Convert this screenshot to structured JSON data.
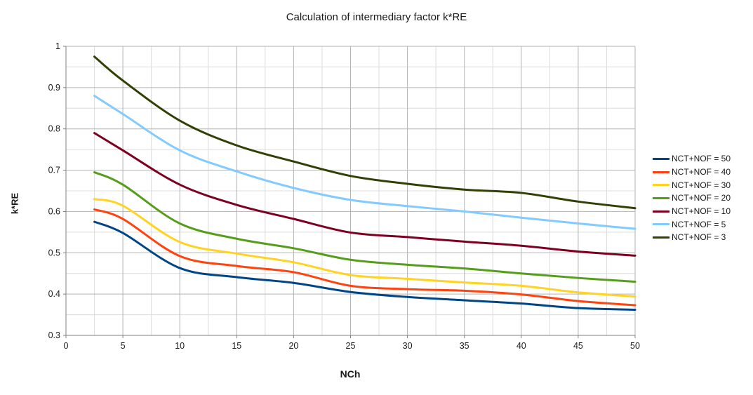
{
  "chart_data": {
    "type": "line",
    "title": "Calculation of intermediary factor k*RE",
    "xlabel": "NCh",
    "ylabel": "k*RE",
    "xlim": [
      0,
      50
    ],
    "ylim": [
      0.3,
      1.0
    ],
    "x_major_ticks": [
      0,
      5,
      10,
      15,
      20,
      25,
      30,
      35,
      40,
      45,
      50
    ],
    "y_major_ticks": [
      0.3,
      0.4,
      0.5,
      0.6,
      0.7,
      0.8,
      0.9,
      1
    ],
    "x_minor_step": 2.5,
    "y_minor_step": 0.05,
    "grid": "major and minor gridlines on both axes",
    "legend_position": "right",
    "background": "#ffffff",
    "colors": {
      "major_grid": "#b3b3b3",
      "minor_grid": "#dcdcdc",
      "axis": "#808080"
    },
    "x": [
      2.5,
      5,
      10,
      15,
      20,
      25,
      30,
      35,
      40,
      45,
      50
    ],
    "series": [
      {
        "name": "NCT+NOF = 50",
        "color": "#004586",
        "values": [
          0.575,
          0.548,
          0.463,
          0.441,
          0.427,
          0.405,
          0.393,
          0.385,
          0.377,
          0.366,
          0.362
        ]
      },
      {
        "name": "NCT+NOF = 40",
        "color": "#FF420E",
        "values": [
          0.605,
          0.582,
          0.492,
          0.468,
          0.453,
          0.42,
          0.412,
          0.408,
          0.399,
          0.383,
          0.373
        ]
      },
      {
        "name": "NCT+NOF = 30",
        "color": "#FFD320",
        "values": [
          0.63,
          0.614,
          0.526,
          0.498,
          0.477,
          0.446,
          0.437,
          0.428,
          0.42,
          0.404,
          0.394
        ]
      },
      {
        "name": "NCT+NOF = 20",
        "color": "#579D1C",
        "values": [
          0.695,
          0.665,
          0.571,
          0.534,
          0.511,
          0.483,
          0.471,
          0.462,
          0.45,
          0.439,
          0.43
        ]
      },
      {
        "name": "NCT+NOF = 10",
        "color": "#7E0021",
        "values": [
          0.79,
          0.748,
          0.665,
          0.616,
          0.582,
          0.549,
          0.538,
          0.527,
          0.517,
          0.503,
          0.493
        ]
      },
      {
        "name": "NCT+NOF = 5",
        "color": "#83CAFF",
        "values": [
          0.88,
          0.836,
          0.748,
          0.697,
          0.657,
          0.628,
          0.613,
          0.6,
          0.585,
          0.571,
          0.558
        ]
      },
      {
        "name": "NCT+NOF = 3",
        "color": "#314004",
        "values": [
          0.975,
          0.917,
          0.82,
          0.76,
          0.721,
          0.686,
          0.667,
          0.653,
          0.645,
          0.624,
          0.608
        ]
      }
    ]
  }
}
